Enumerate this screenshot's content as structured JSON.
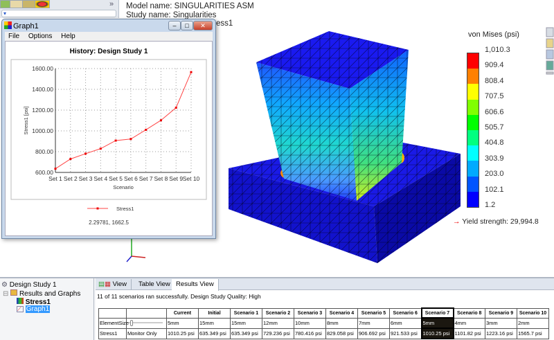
{
  "feature_manager": {
    "tabs": [
      "feature-tree-icon",
      "property-icon",
      "config-icon",
      "display-icon"
    ],
    "expand": "»",
    "filter": "▾"
  },
  "model_info": {
    "model_name": "Model name: SINGULARITIES ASM",
    "study_name": "Study name: Singularities",
    "plot_partial": "ess1"
  },
  "graph_window": {
    "title": "Graph1",
    "menu": [
      "File",
      "Options",
      "Help"
    ],
    "buttons": [
      "–",
      "□",
      "✕"
    ],
    "status": "2.29781, 1662.5"
  },
  "chart_data": {
    "type": "line",
    "title": "History: Design Study 1",
    "xlabel": "Scenario",
    "ylabel": "Stress1 [psi]",
    "categories": [
      "Set 1",
      "Set 2",
      "Set 3",
      "Set 4",
      "Set 5",
      "Set 6",
      "Set 7",
      "Set 8",
      "Set 9",
      "Set 10"
    ],
    "series": [
      {
        "name": "Stress1",
        "color": "#ff4444",
        "values": [
          635.349,
          729.236,
          780.416,
          829.058,
          906.692,
          921.533,
          1010.25,
          1101.82,
          1223.16,
          1565.7
        ]
      }
    ],
    "ylim": [
      600,
      1600
    ],
    "yticks": [
      "600.00",
      "800.00",
      "1000.00",
      "1200.00",
      "1400.00",
      "1600.00"
    ],
    "grid": true,
    "legend": "bottom"
  },
  "legend": {
    "title": "von Mises (psi)",
    "labels": [
      "1,010.3",
      "909.4",
      "808.4",
      "707.5",
      "606.6",
      "505.7",
      "404.8",
      "303.9",
      "203.0",
      "102.1",
      "1.2"
    ],
    "colors": [
      "#ff0000",
      "#ff8000",
      "#ffff00",
      "#80ff00",
      "#00ff00",
      "#00ff80",
      "#00ffff",
      "#00aaff",
      "#0055ff",
      "#0000ff"
    ],
    "yield": "Yield strength: 29,994.8"
  },
  "tree": {
    "root": "Design Study 1",
    "folder": "Results and Graphs",
    "items": [
      "Stress1",
      "Graph1"
    ]
  },
  "results": {
    "tabs": [
      "View",
      "Table View",
      "Results View"
    ],
    "status": "11 of 11 scenarios ran successfully. Design Study Quality: High",
    "headers": [
      "Current",
      "Initial",
      "Scenario 1",
      "Scenario 2",
      "Scenario 3",
      "Scenario 4",
      "Scenario 5",
      "Scenario 6",
      "Scenario 7",
      "Scenario 8",
      "Scenario 9",
      "Scenario 10"
    ],
    "rows": [
      {
        "label": "ElementSize",
        "mode": "",
        "values": [
          "5mm",
          "15mm",
          "15mm",
          "12mm",
          "10mm",
          "8mm",
          "7mm",
          "6mm",
          "5mm",
          "4mm",
          "3mm",
          "2mm"
        ]
      },
      {
        "label": "Stress1",
        "mode": "Monitor Only",
        "values": [
          "1010.25 psi",
          "635.349 psi",
          "635.349 psi",
          "729.236 psi",
          "780.416 psi",
          "829.058 psi",
          "906.692 psi",
          "921.533 psi",
          "1010.25 psi",
          "1101.82 psi",
          "1223.16 psi",
          "1565.7 psi"
        ]
      }
    ],
    "selected_column": "Scenario 7"
  }
}
